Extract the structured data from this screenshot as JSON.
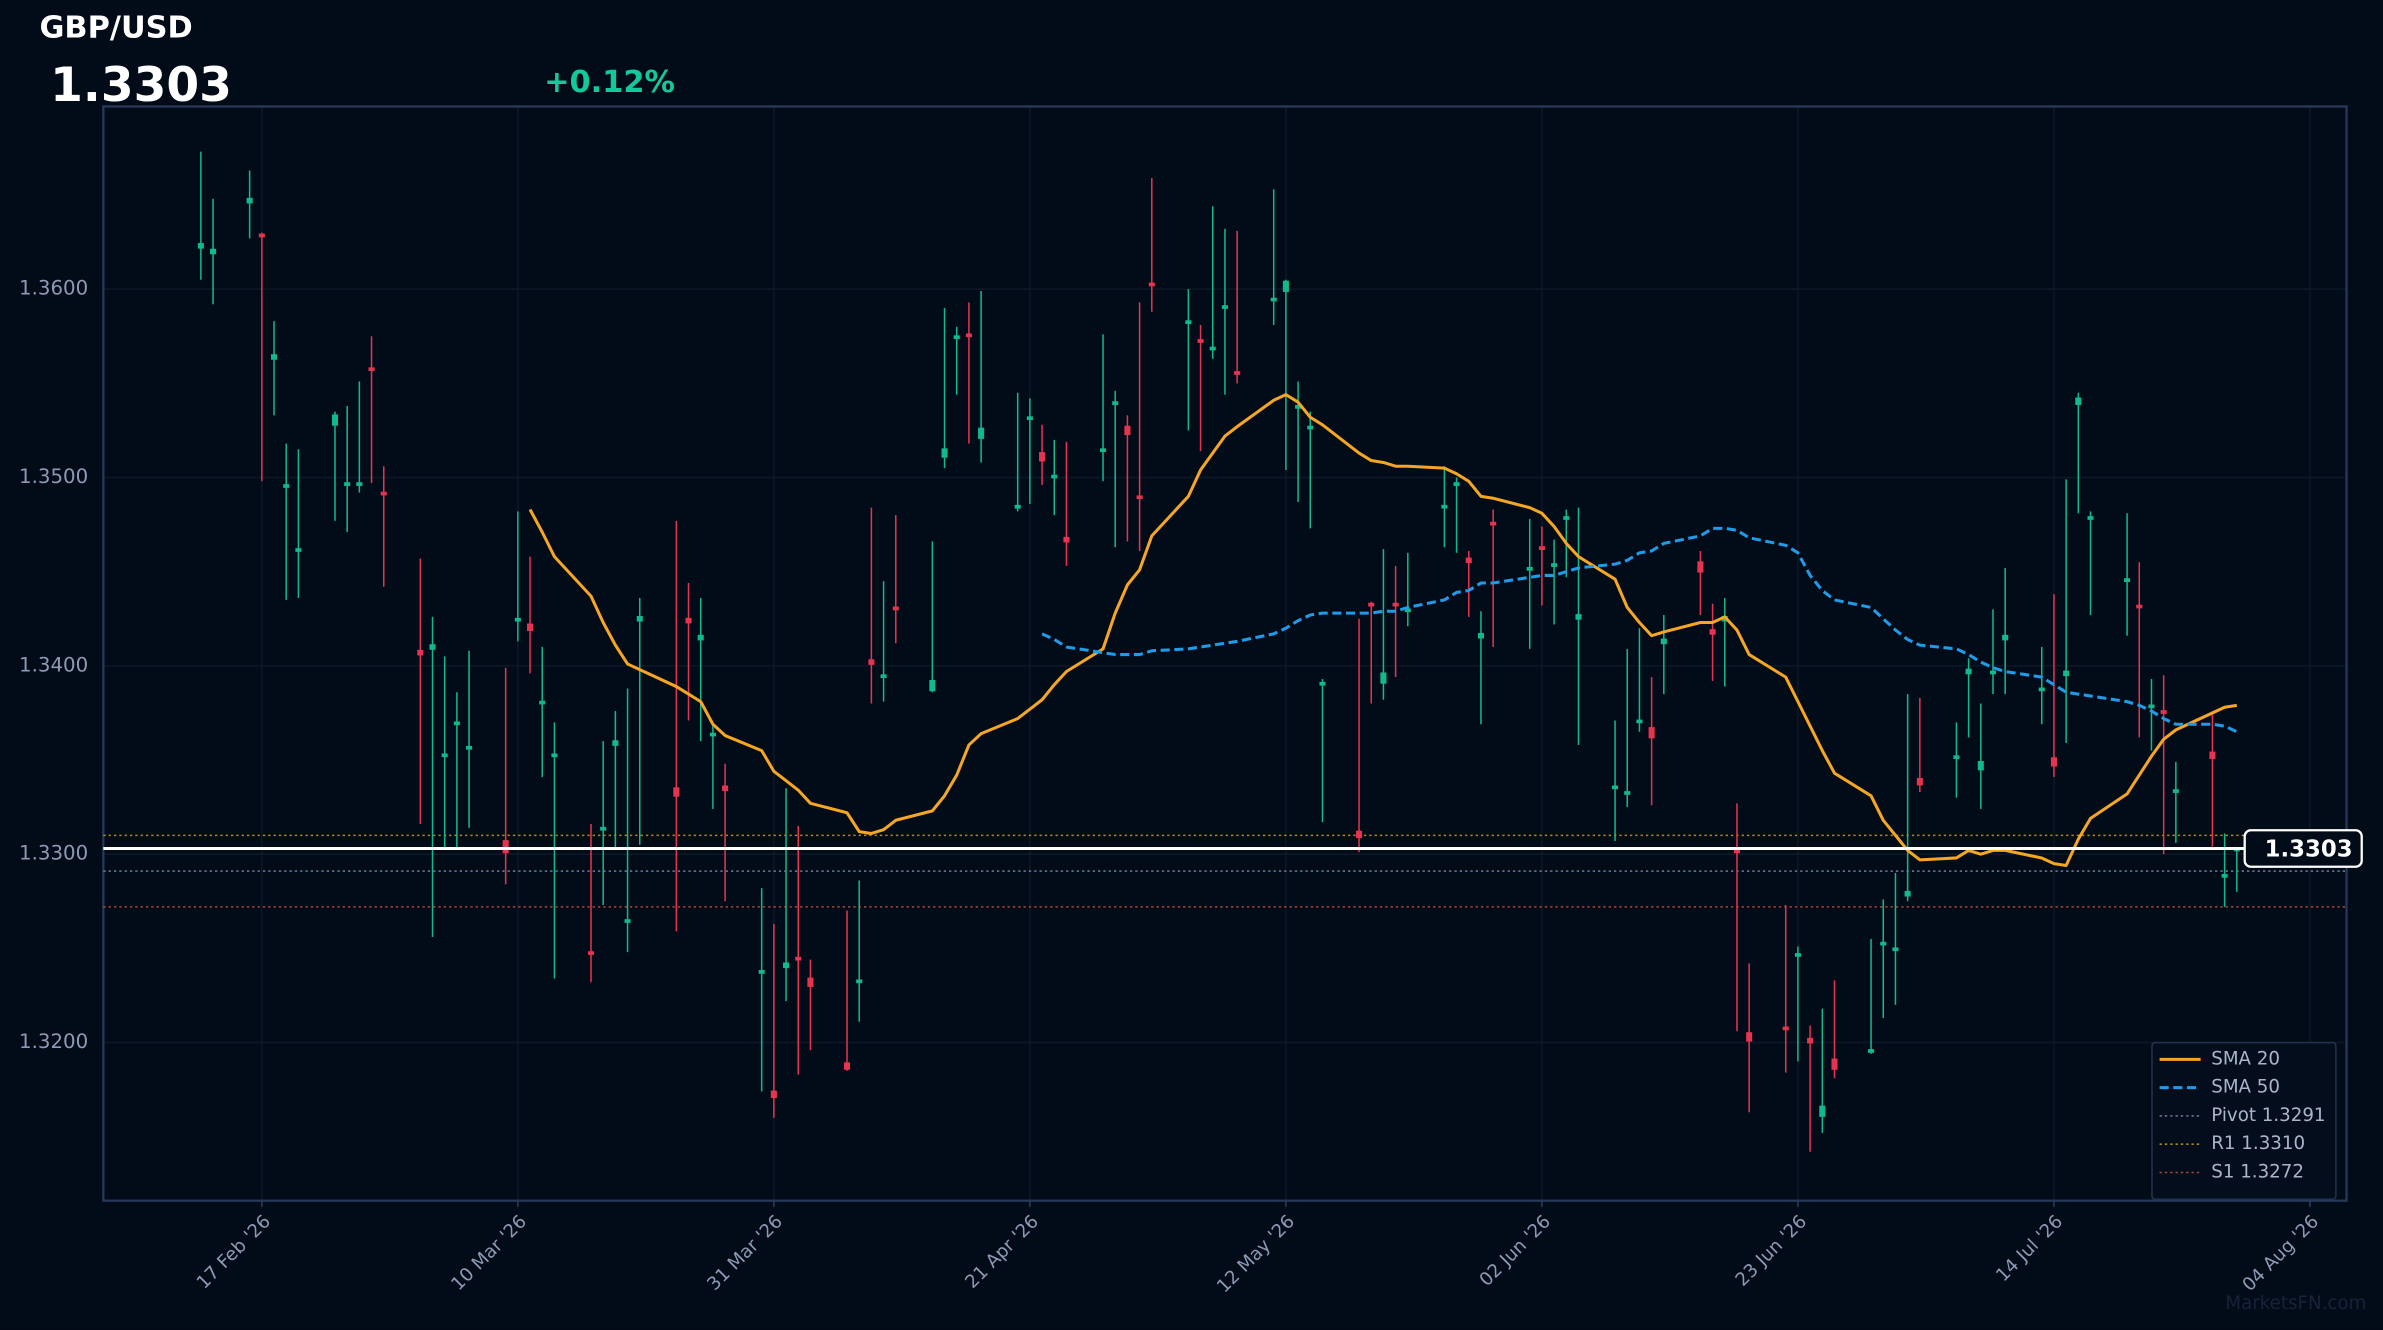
{
  "chart_data": {
    "type": "candlestick",
    "title": "GBP/USD",
    "last_price": 1.3303,
    "change": {
      "value": 0.12,
      "label": "+0.12%"
    },
    "watermark": "MarketsFN.com",
    "up_color": "#12b98a",
    "down_color": "#e5344f",
    "grid": true,
    "xlim": [
      "2026-02-04",
      "2026-08-07"
    ],
    "ylim": [
      1.3116,
      1.3697
    ],
    "yticks": [
      {
        "value": 1.32,
        "label": "1.3200"
      },
      {
        "value": 1.33,
        "label": "1.3300"
      },
      {
        "value": 1.34,
        "label": "1.3400"
      },
      {
        "value": 1.35,
        "label": "1.3500"
      },
      {
        "value": 1.36,
        "label": "1.3600"
      }
    ],
    "xticks": [
      {
        "value": "2026-02-17",
        "label": "17 Feb '26"
      },
      {
        "value": "2026-03-10",
        "label": "10 Mar '26"
      },
      {
        "value": "2026-03-31",
        "label": "31 Mar '26"
      },
      {
        "value": "2026-04-21",
        "label": "21 Apr '26"
      },
      {
        "value": "2026-05-12",
        "label": "12 May '26"
      },
      {
        "value": "2026-06-02",
        "label": "02 Jun '26"
      },
      {
        "value": "2026-06-23",
        "label": "23 Jun '26"
      },
      {
        "value": "2026-07-14",
        "label": "14 Jul '26"
      },
      {
        "value": "2026-08-04",
        "label": "04 Aug '26"
      }
    ],
    "x": [
      "2026-02-12",
      "2026-02-13",
      "2026-02-16",
      "2026-02-17",
      "2026-02-18",
      "2026-02-19",
      "2026-02-20",
      "2026-02-23",
      "2026-02-24",
      "2026-02-25",
      "2026-02-26",
      "2026-02-27",
      "2026-03-02",
      "2026-03-03",
      "2026-03-04",
      "2026-03-05",
      "2026-03-06",
      "2026-03-09",
      "2026-03-10",
      "2026-03-11",
      "2026-03-12",
      "2026-03-13",
      "2026-03-16",
      "2026-03-17",
      "2026-03-18",
      "2026-03-19",
      "2026-03-20",
      "2026-03-23",
      "2026-03-24",
      "2026-03-25",
      "2026-03-26",
      "2026-03-27",
      "2026-03-30",
      "2026-03-31",
      "2026-04-01",
      "2026-04-02",
      "2026-04-03",
      "2026-04-06",
      "2026-04-07",
      "2026-04-08",
      "2026-04-09",
      "2026-04-10",
      "2026-04-13",
      "2026-04-14",
      "2026-04-15",
      "2026-04-16",
      "2026-04-17",
      "2026-04-20",
      "2026-04-21",
      "2026-04-22",
      "2026-04-23",
      "2026-04-24",
      "2026-04-27",
      "2026-04-28",
      "2026-04-29",
      "2026-04-30",
      "2026-05-01",
      "2026-05-04",
      "2026-05-05",
      "2026-05-06",
      "2026-05-07",
      "2026-05-08",
      "2026-05-11",
      "2026-05-12",
      "2026-05-13",
      "2026-05-14",
      "2026-05-15",
      "2026-05-18",
      "2026-05-19",
      "2026-05-20",
      "2026-05-21",
      "2026-05-22",
      "2026-05-25",
      "2026-05-26",
      "2026-05-27",
      "2026-05-28",
      "2026-05-29",
      "2026-06-01",
      "2026-06-02",
      "2026-06-03",
      "2026-06-04",
      "2026-06-05",
      "2026-06-08",
      "2026-06-09",
      "2026-06-10",
      "2026-06-11",
      "2026-06-12",
      "2026-06-15",
      "2026-06-16",
      "2026-06-17",
      "2026-06-18",
      "2026-06-19",
      "2026-06-22",
      "2026-06-23",
      "2026-06-24",
      "2026-06-25",
      "2026-06-26",
      "2026-06-29",
      "2026-06-30",
      "2026-07-01",
      "2026-07-02",
      "2026-07-03",
      "2026-07-06",
      "2026-07-07",
      "2026-07-08",
      "2026-07-09",
      "2026-07-10",
      "2026-07-13",
      "2026-07-14",
      "2026-07-15",
      "2026-07-16",
      "2026-07-17",
      "2026-07-20",
      "2026-07-21",
      "2026-07-22",
      "2026-07-23",
      "2026-07-24",
      "2026-07-27",
      "2026-07-28",
      "2026-07-29"
    ],
    "open": [
      1.3622,
      1.3619,
      1.3646,
      1.3629,
      1.3563,
      1.3495,
      1.3461,
      1.3528,
      1.3496,
      1.3496,
      1.3558,
      1.3492,
      1.3408,
      1.3409,
      1.3352,
      1.3369,
      1.3356,
      1.3307,
      1.3424,
      1.3422,
      1.338,
      1.3352,
      1.3248,
      1.3313,
      1.3358,
      1.3264,
      1.3424,
      1.3335,
      1.3425,
      1.3414,
      1.3363,
      1.3336,
      1.3237,
      1.3174,
      1.324,
      1.3245,
      1.3234,
      1.3189,
      1.3232,
      1.3403,
      1.3394,
      1.3431,
      1.3387,
      1.3511,
      1.3574,
      1.3576,
      1.3521,
      1.3484,
      1.3531,
      1.3513,
      1.35,
      1.3468,
      1.3514,
      1.3539,
      1.3527,
      1.349,
      1.3603,
      1.3582,
      1.3573,
      1.3568,
      1.359,
      1.3556,
      1.3594,
      1.3599,
      1.3537,
      1.3526,
      1.339,
      1.3312,
      1.3433,
      1.3391,
      1.3433,
      1.3429,
      1.3484,
      1.3496,
      1.3457,
      1.3415,
      1.3476,
      1.3451,
      1.3463,
      1.3453,
      1.3478,
      1.3425,
      1.3335,
      1.3332,
      1.337,
      1.3367,
      1.3412,
      1.3455,
      1.3419,
      1.3424,
      1.3303,
      1.3205,
      1.3208,
      1.3246,
      1.3202,
      1.3161,
      1.3191,
      1.3195,
      1.3252,
      1.3249,
      1.3278,
      1.334,
      1.3351,
      1.3396,
      1.3345,
      1.3396,
      1.3414,
      1.3387,
      1.3351,
      1.3395,
      1.3539,
      1.3478,
      1.3445,
      1.3432,
      1.3378,
      1.3376,
      1.3333,
      1.3354,
      1.3288,
      1.3302
    ],
    "high": [
      1.3673,
      1.3648,
      1.3663,
      1.363,
      1.3583,
      1.3518,
      1.3515,
      1.3535,
      1.3538,
      1.3551,
      1.3575,
      1.3506,
      1.3457,
      1.3426,
      1.3405,
      1.3386,
      1.3408,
      1.3399,
      1.3482,
      1.3458,
      1.341,
      1.337,
      1.3316,
      1.336,
      1.3376,
      1.3388,
      1.3436,
      1.3477,
      1.3444,
      1.3436,
      1.337,
      1.3348,
      1.3282,
      1.3263,
      1.3335,
      1.3315,
      1.3244,
      1.327,
      1.3286,
      1.3484,
      1.3445,
      1.348,
      1.3466,
      1.359,
      1.358,
      1.3593,
      1.3599,
      1.3545,
      1.3542,
      1.3528,
      1.352,
      1.3519,
      1.3576,
      1.3546,
      1.3533,
      1.3593,
      1.3659,
      1.36,
      1.3581,
      1.3644,
      1.3632,
      1.3631,
      1.3653,
      1.3605,
      1.3551,
      1.3535,
      1.3393,
      1.3425,
      1.3434,
      1.3462,
      1.3453,
      1.346,
      1.3506,
      1.35,
      1.3461,
      1.3429,
      1.3483,
      1.3478,
      1.3474,
      1.3467,
      1.3483,
      1.3484,
      1.3371,
      1.3409,
      1.342,
      1.3394,
      1.3427,
      1.3461,
      1.3433,
      1.3436,
      1.3327,
      1.3242,
      1.3273,
      1.3251,
      1.3209,
      1.3218,
      1.3233,
      1.3255,
      1.3276,
      1.329,
      1.3385,
      1.3383,
      1.337,
      1.3404,
      1.338,
      1.343,
      1.3452,
      1.341,
      1.3438,
      1.3499,
      1.3545,
      1.3482,
      1.3481,
      1.3455,
      1.3393,
      1.3395,
      1.3349,
      1.3374,
      1.3311,
      1.3303
    ],
    "low": [
      1.3605,
      1.3592,
      1.3627,
      1.3498,
      1.3533,
      1.3435,
      1.3436,
      1.3477,
      1.3471,
      1.3492,
      1.3497,
      1.3442,
      1.3316,
      1.3256,
      1.3303,
      1.3303,
      1.3314,
      1.3284,
      1.3413,
      1.3396,
      1.3341,
      1.3234,
      1.3232,
      1.3273,
      1.3303,
      1.3248,
      1.3305,
      1.3259,
      1.3371,
      1.336,
      1.3324,
      1.3275,
      1.3174,
      1.316,
      1.3222,
      1.3183,
      1.3196,
      1.3185,
      1.3211,
      1.338,
      1.3381,
      1.3412,
      1.3386,
      1.3505,
      1.3544,
      1.3518,
      1.3508,
      1.3482,
      1.3486,
      1.3496,
      1.348,
      1.3453,
      1.3498,
      1.3463,
      1.3466,
      1.3461,
      1.3588,
      1.3525,
      1.3514,
      1.3563,
      1.3544,
      1.355,
      1.3581,
      1.3504,
      1.3487,
      1.3473,
      1.3317,
      1.3301,
      1.338,
      1.3382,
      1.3394,
      1.3421,
      1.3463,
      1.346,
      1.3426,
      1.3369,
      1.341,
      1.3409,
      1.3432,
      1.3422,
      1.3447,
      1.3358,
      1.3307,
      1.3325,
      1.3365,
      1.3326,
      1.3385,
      1.3427,
      1.3392,
      1.3389,
      1.3206,
      1.3163,
      1.3184,
      1.319,
      1.3142,
      1.3152,
      1.3181,
      1.3194,
      1.3213,
      1.322,
      1.3275,
      1.3333,
      1.333,
      1.3362,
      1.3324,
      1.3385,
      1.3385,
      1.3369,
      1.3341,
      1.3359,
      1.3481,
      1.3427,
      1.3416,
      1.3362,
      1.3355,
      1.33,
      1.3306,
      1.3304,
      1.3272,
      1.328
    ],
    "close": [
      1.3624,
      1.3621,
      1.3648,
      1.3628,
      1.3565,
      1.3496,
      1.3462,
      1.3533,
      1.3497,
      1.3497,
      1.3557,
      1.3491,
      1.3406,
      1.3411,
      1.3353,
      1.337,
      1.3357,
      1.3301,
      1.3425,
      1.3419,
      1.3381,
      1.3353,
      1.3247,
      1.3314,
      1.336,
      1.3265,
      1.3426,
      1.3331,
      1.3423,
      1.3416,
      1.3364,
      1.3334,
      1.3238,
      1.3171,
      1.3242,
      1.3244,
      1.323,
      1.3186,
      1.3233,
      1.3401,
      1.3395,
      1.343,
      1.3392,
      1.3515,
      1.3575,
      1.3575,
      1.3526,
      1.3485,
      1.3532,
      1.3509,
      1.3501,
      1.3466,
      1.3515,
      1.354,
      1.3523,
      1.3489,
      1.3602,
      1.3583,
      1.3572,
      1.3569,
      1.3591,
      1.3555,
      1.3595,
      1.3604,
      1.3538,
      1.3527,
      1.3391,
      1.3309,
      1.3432,
      1.3396,
      1.3432,
      1.343,
      1.3485,
      1.3497,
      1.3455,
      1.3417,
      1.3475,
      1.3452,
      1.3462,
      1.3454,
      1.3479,
      1.3427,
      1.3336,
      1.3333,
      1.3371,
      1.3362,
      1.3414,
      1.345,
      1.3417,
      1.3426,
      1.3301,
      1.3201,
      1.3207,
      1.3247,
      1.32,
      1.3166,
      1.3186,
      1.3196,
      1.3253,
      1.325,
      1.328,
      1.3337,
      1.3352,
      1.3398,
      1.3349,
      1.3397,
      1.3416,
      1.3388,
      1.3347,
      1.3397,
      1.3542,
      1.3479,
      1.3446,
      1.3431,
      1.3379,
      1.3375,
      1.3334,
      1.3351,
      1.3289,
      1.3303
    ],
    "overlays": [
      {
        "name": "SMA 20",
        "color": "#f5a623",
        "dash": false,
        "values": [
          null,
          null,
          null,
          null,
          null,
          null,
          null,
          null,
          null,
          null,
          null,
          null,
          null,
          null,
          null,
          null,
          null,
          null,
          null,
          1.3483,
          1.3471,
          1.3458,
          1.3437,
          1.3423,
          1.3411,
          1.3401,
          1.3398,
          1.3389,
          1.3385,
          1.3381,
          1.3369,
          1.3363,
          1.3355,
          1.3344,
          1.3339,
          1.3334,
          1.3327,
          1.3322,
          1.3312,
          1.3311,
          1.3313,
          1.3318,
          1.3323,
          1.3331,
          1.3342,
          1.3358,
          1.3364,
          1.3372,
          1.3377,
          1.3382,
          1.339,
          1.3397,
          1.3409,
          1.3428,
          1.3443,
          1.3451,
          1.3469,
          1.349,
          1.3504,
          1.3513,
          1.3522,
          1.3527,
          1.3541,
          1.3544,
          1.354,
          1.3532,
          1.3528,
          1.3513,
          1.3509,
          1.3508,
          1.3506,
          1.3506,
          1.3505,
          1.3502,
          1.3498,
          1.349,
          1.3489,
          1.3484,
          1.3481,
          1.3474,
          1.3465,
          1.3458,
          1.3446,
          1.3431,
          1.3423,
          1.3416,
          1.3418,
          1.3423,
          1.3423,
          1.3426,
          1.3419,
          1.3406,
          1.3394,
          1.3381,
          1.3368,
          1.3355,
          1.3343,
          1.3331,
          1.3318,
          1.331,
          1.3302,
          1.3297,
          1.3298,
          1.3302,
          1.33,
          1.3302,
          1.3302,
          1.3298,
          1.3295,
          1.3294,
          1.3308,
          1.3319,
          1.3332,
          1.3342,
          1.3352,
          1.3361,
          1.3366,
          1.3375,
          1.3378,
          1.3379
        ]
      },
      {
        "name": "SMA 50",
        "color": "#1e9be9",
        "dash": true,
        "values": [
          null,
          null,
          null,
          null,
          null,
          null,
          null,
          null,
          null,
          null,
          null,
          null,
          null,
          null,
          null,
          null,
          null,
          null,
          null,
          null,
          null,
          null,
          null,
          null,
          null,
          null,
          null,
          null,
          null,
          null,
          null,
          null,
          null,
          null,
          null,
          null,
          null,
          null,
          null,
          null,
          null,
          null,
          null,
          null,
          null,
          null,
          null,
          null,
          null,
          1.3417,
          1.3414,
          1.341,
          1.3407,
          1.3406,
          1.3406,
          1.3406,
          1.3408,
          1.3409,
          1.341,
          1.3411,
          1.3412,
          1.3413,
          1.3417,
          1.342,
          1.3424,
          1.3427,
          1.3428,
          1.3428,
          1.3428,
          1.3429,
          1.3429,
          1.3431,
          1.3435,
          1.3439,
          1.344,
          1.3444,
          1.3444,
          1.3447,
          1.3448,
          1.3448,
          1.345,
          1.3452,
          1.3454,
          1.3456,
          1.346,
          1.3461,
          1.3465,
          1.3469,
          1.3473,
          1.3473,
          1.3472,
          1.3468,
          1.3464,
          1.346,
          1.3448,
          1.344,
          1.3435,
          1.3431,
          1.3425,
          1.3419,
          1.3414,
          1.3411,
          1.3409,
          1.3406,
          1.3402,
          1.3399,
          1.3397,
          1.3394,
          1.339,
          1.3386,
          1.3385,
          1.3384,
          1.3381,
          1.3379,
          1.3376,
          1.3372,
          1.3369,
          1.3369,
          1.3368,
          1.3365
        ]
      }
    ],
    "levels": [
      {
        "label": "Pivot 1.3291",
        "value": 1.3291,
        "color": "#6b7f9e"
      },
      {
        "label": "R1 1.3310",
        "value": 1.331,
        "color": "#b08a1e"
      },
      {
        "label": "S1 1.3272",
        "value": 1.3272,
        "color": "#b0453a"
      }
    ]
  }
}
